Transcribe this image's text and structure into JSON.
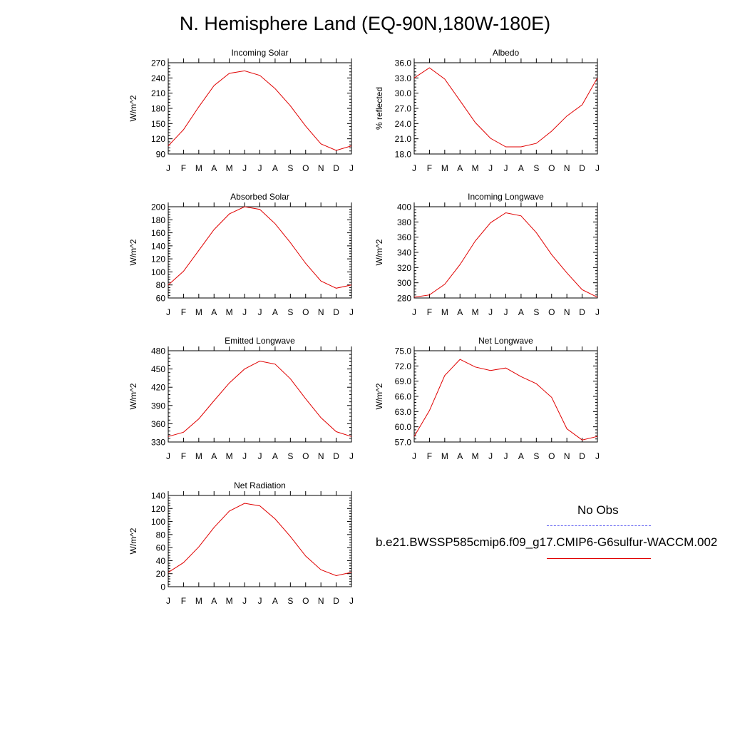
{
  "title": "N. Hemisphere Land (EQ-90N,180W-180E)",
  "legend": {
    "items": [
      {
        "label": "No Obs",
        "color": "#5a5af0",
        "style": "dashed"
      },
      {
        "label": "b.e21.BWSSP585cmip6.f09_g17.CMIP6-G6sulfur-WACCM.002",
        "color": "#e00000",
        "style": "solid"
      }
    ]
  },
  "chart_data": [
    {
      "type": "line",
      "title": "Incoming Solar",
      "ylabel": "W/m^2",
      "ylim": [
        90,
        270
      ],
      "yticks": [
        "90",
        "120",
        "150",
        "180",
        "210",
        "240",
        "270"
      ],
      "categories": [
        "J",
        "F",
        "M",
        "A",
        "M",
        "J",
        "J",
        "A",
        "S",
        "O",
        "N",
        "D",
        "J"
      ],
      "series": [
        {
          "color": "#e00000",
          "values": [
            106,
            138,
            183,
            225,
            249,
            254,
            245,
            219,
            185,
            145,
            110,
            97,
            106
          ]
        }
      ]
    },
    {
      "type": "line",
      "title": "Albedo",
      "ylabel": "% reflected",
      "ylim": [
        18.0,
        36.0
      ],
      "yticks": [
        "18.0",
        "21.0",
        "24.0",
        "27.0",
        "30.0",
        "33.0",
        "36.0"
      ],
      "categories": [
        "J",
        "F",
        "M",
        "A",
        "M",
        "J",
        "J",
        "A",
        "S",
        "O",
        "N",
        "D",
        "J"
      ],
      "series": [
        {
          "color": "#e00000",
          "values": [
            33.0,
            35.0,
            32.8,
            28.5,
            24.2,
            21.1,
            19.4,
            19.4,
            20.1,
            22.5,
            25.5,
            27.7,
            33.0
          ]
        }
      ]
    },
    {
      "type": "line",
      "title": "Absorbed Solar",
      "ylabel": "W/m^2",
      "ylim": [
        60,
        200
      ],
      "yticks": [
        "60",
        "80",
        "100",
        "120",
        "140",
        "160",
        "180",
        "200"
      ],
      "categories": [
        "J",
        "F",
        "M",
        "A",
        "M",
        "J",
        "J",
        "A",
        "S",
        "O",
        "N",
        "D",
        "J"
      ],
      "series": [
        {
          "color": "#e00000",
          "values": [
            80,
            101,
            133,
            165,
            189,
            200,
            196,
            174,
            145,
            113,
            86,
            75,
            80
          ]
        }
      ]
    },
    {
      "type": "line",
      "title": "Incoming Longwave",
      "ylabel": "W/m^2",
      "ylim": [
        280,
        400
      ],
      "yticks": [
        "280",
        "300",
        "320",
        "340",
        "360",
        "380",
        "400"
      ],
      "categories": [
        "J",
        "F",
        "M",
        "A",
        "M",
        "J",
        "J",
        "A",
        "S",
        "O",
        "N",
        "D",
        "J"
      ],
      "series": [
        {
          "color": "#e00000",
          "values": [
            281,
            284,
            298,
            324,
            355,
            379,
            392,
            388,
            366,
            337,
            313,
            291,
            281
          ]
        }
      ]
    },
    {
      "type": "line",
      "title": "Emitted Longwave",
      "ylabel": "W/m^2",
      "ylim": [
        330,
        480
      ],
      "yticks": [
        "330",
        "360",
        "390",
        "420",
        "450",
        "480"
      ],
      "categories": [
        "J",
        "F",
        "M",
        "A",
        "M",
        "J",
        "J",
        "A",
        "S",
        "O",
        "N",
        "D",
        "J"
      ],
      "series": [
        {
          "color": "#e00000",
          "values": [
            339,
            346,
            368,
            398,
            427,
            450,
            463,
            458,
            434,
            401,
            370,
            347,
            339
          ]
        }
      ]
    },
    {
      "type": "line",
      "title": "Net Longwave",
      "ylabel": "W/m^2",
      "ylim": [
        57.0,
        75.0
      ],
      "yticks": [
        "57.0",
        "60.0",
        "63.0",
        "66.0",
        "69.0",
        "72.0",
        "75.0"
      ],
      "categories": [
        "J",
        "F",
        "M",
        "A",
        "M",
        "J",
        "J",
        "A",
        "S",
        "O",
        "N",
        "D",
        "J"
      ],
      "series": [
        {
          "color": "#e00000",
          "values": [
            58.1,
            63.2,
            70.1,
            73.3,
            71.8,
            71.1,
            71.6,
            69.9,
            68.5,
            65.8,
            59.6,
            57.4,
            58.1
          ]
        }
      ]
    },
    {
      "type": "line",
      "title": "Net Radiation",
      "ylabel": "W/m^2",
      "ylim": [
        0,
        140
      ],
      "yticks": [
        "0",
        "20",
        "40",
        "60",
        "80",
        "100",
        "120",
        "140"
      ],
      "categories": [
        "J",
        "F",
        "M",
        "A",
        "M",
        "J",
        "J",
        "A",
        "S",
        "O",
        "N",
        "D",
        "J"
      ],
      "series": [
        {
          "color": "#e00000",
          "values": [
            22,
            37,
            61,
            91,
            116,
            128,
            124,
            104,
            77,
            47,
            26,
            17,
            22
          ]
        }
      ]
    }
  ]
}
